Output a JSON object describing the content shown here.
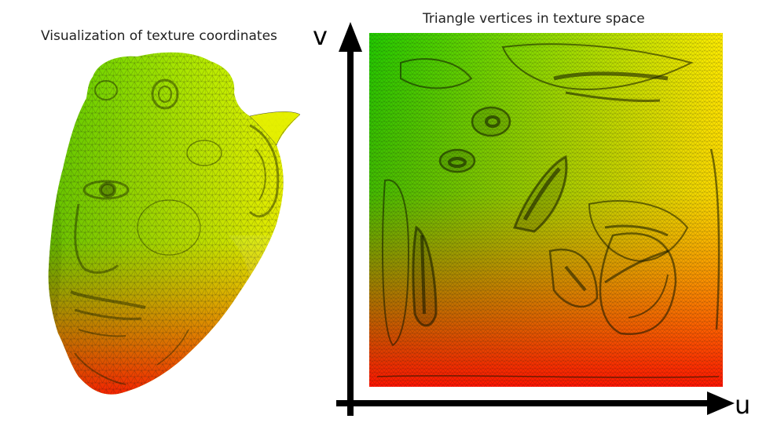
{
  "left_panel": {
    "title": "Visualization of texture coordinates"
  },
  "right_panel": {
    "title": "Triangle vertices in texture space",
    "axis_v_label": "v",
    "axis_u_label": "u"
  },
  "colors": {
    "green": "#33cc00",
    "yellow": "#ffff00",
    "red": "#ff1a00",
    "mesh": "#1a1a1a",
    "axis": "#000000"
  }
}
